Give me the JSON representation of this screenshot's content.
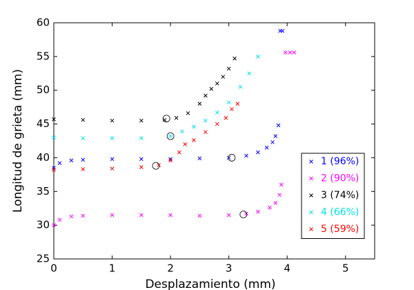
{
  "chart_data": {
    "type": "scatter",
    "x_label": "Desplazamiento (mm)",
    "y_label": "Longitud de grieta (mm)",
    "xlim": [
      0,
      5.5
    ],
    "ylim": [
      25,
      60
    ],
    "xticks": [
      0,
      1,
      2,
      3,
      4,
      5
    ],
    "yticks": [
      25,
      30,
      35,
      40,
      45,
      50,
      55,
      60
    ],
    "legend": "right",
    "series": [
      {
        "name": "1 (96%)",
        "color": "#0000ff",
        "x": [
          0,
          0.1,
          0.3,
          0.5,
          1,
          1.5,
          2,
          2.5,
          3,
          3.3,
          3.5,
          3.65,
          3.75,
          3.8,
          3.85,
          3.88,
          3.92
        ],
        "values": [
          38.5,
          39.2,
          39.6,
          39.7,
          39.8,
          39.8,
          39.8,
          39.9,
          40.0,
          40.3,
          40.8,
          41.5,
          42.3,
          43.2,
          44.8,
          58.8,
          58.8
        ],
        "circle": [
          3.05,
          40.0
        ]
      },
      {
        "name": "2 (90%)",
        "color": "#ff00ff",
        "x": [
          0,
          0.1,
          0.3,
          0.5,
          1,
          1.5,
          2,
          2.5,
          3,
          3.3,
          3.5,
          3.7,
          3.8,
          3.87,
          3.9,
          3.97,
          4.05,
          4.12
        ],
        "values": [
          30.0,
          30.8,
          31.3,
          31.4,
          31.5,
          31.5,
          31.5,
          31.4,
          31.5,
          31.7,
          32.0,
          32.6,
          33.3,
          34.5,
          36.0,
          55.6,
          55.6,
          55.6
        ],
        "circle": [
          3.25,
          31.6
        ]
      },
      {
        "name": "3 (74%)",
        "color": "#000000",
        "x": [
          0,
          0.5,
          1,
          1.5,
          1.9,
          2.1,
          2.3,
          2.5,
          2.6,
          2.7,
          2.8,
          2.9,
          3.0,
          3.1
        ],
        "values": [
          45.7,
          45.6,
          45.5,
          45.5,
          45.6,
          45.9,
          46.6,
          48.0,
          49.2,
          50.2,
          51.0,
          52.0,
          53.2,
          54.7
        ],
        "circle": [
          1.93,
          45.8
        ]
      },
      {
        "name": "4 (66%)",
        "color": "#00e5e5",
        "x": [
          0,
          0.5,
          1,
          1.5,
          2,
          2.2,
          2.4,
          2.6,
          2.8,
          3.0,
          3.2,
          3.35,
          3.5
        ],
        "values": [
          43.0,
          42.9,
          42.9,
          42.9,
          43.2,
          43.9,
          44.6,
          45.5,
          46.7,
          48.2,
          50.5,
          52.5,
          55.0
        ],
        "circle": [
          2.0,
          43.2
        ]
      },
      {
        "name": "5 (59%)",
        "color": "#ff0000",
        "x": [
          0,
          0.5,
          1,
          1.5,
          1.8,
          2.0,
          2.15,
          2.25,
          2.4,
          2.6,
          2.8,
          2.95,
          3.05,
          3.15
        ],
        "values": [
          38.2,
          38.3,
          38.4,
          38.6,
          38.9,
          39.6,
          40.8,
          42.0,
          42.6,
          43.8,
          45.0,
          45.9,
          47.2,
          48.0
        ],
        "circle": [
          1.75,
          38.8
        ]
      }
    ]
  }
}
